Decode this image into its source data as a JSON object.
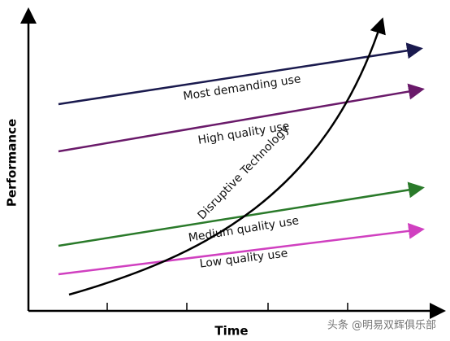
{
  "axes": {
    "y_label": "Performance",
    "x_label": "Time"
  },
  "lines": [
    {
      "label": "Most demanding use"
    },
    {
      "label": "High quality use"
    },
    {
      "label": "Medium quality use"
    },
    {
      "label": "Low quality use"
    }
  ],
  "curve": {
    "label": "Disruptive Technology"
  },
  "watermark": "头条 @明易双辉俱乐部"
}
